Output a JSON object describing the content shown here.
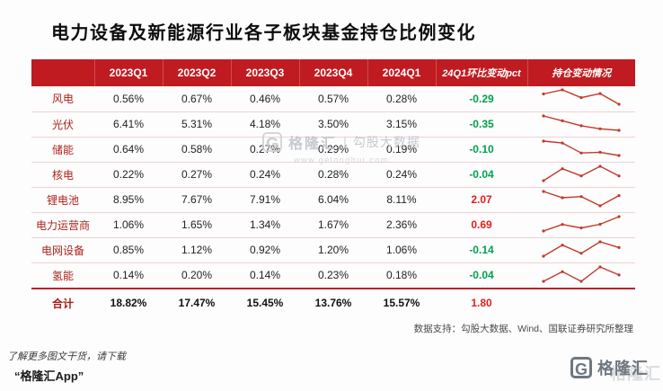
{
  "title": "电力设备及新能源行业各子板块基金持仓比例变化",
  "colors": {
    "header_bg": "#c01b21",
    "row_label": "#ab241c",
    "negative": "#00a04f",
    "positive": "#e51d1d",
    "sparkline": "#c0392b"
  },
  "table": {
    "quarter_headers": [
      "2023Q1",
      "2023Q2",
      "2023Q3",
      "2023Q4",
      "2024Q1"
    ],
    "change_header": "24Q1环比变动pct",
    "trend_header": "持仓变动情况",
    "rows": [
      {
        "label": "风电",
        "values": [
          "0.56%",
          "0.67%",
          "0.46%",
          "0.57%",
          "0.28%"
        ],
        "change": "-0.29",
        "change_sign": "negative",
        "trend": [
          0.56,
          0.67,
          0.46,
          0.57,
          0.28
        ]
      },
      {
        "label": "光伏",
        "values": [
          "6.41%",
          "5.31%",
          "4.18%",
          "3.50%",
          "3.15%"
        ],
        "change": "-0.35",
        "change_sign": "negative",
        "trend": [
          6.41,
          5.31,
          4.18,
          3.5,
          3.15
        ]
      },
      {
        "label": "储能",
        "values": [
          "0.64%",
          "0.58%",
          "0.27%",
          "0.29%",
          "0.19%"
        ],
        "change": "-0.10",
        "change_sign": "negative",
        "trend": [
          0.64,
          0.58,
          0.27,
          0.29,
          0.19
        ]
      },
      {
        "label": "核电",
        "values": [
          "0.22%",
          "0.27%",
          "0.24%",
          "0.28%",
          "0.24%"
        ],
        "change": "-0.04",
        "change_sign": "negative",
        "trend": [
          0.22,
          0.27,
          0.24,
          0.28,
          0.24
        ]
      },
      {
        "label": "锂电池",
        "values": [
          "8.95%",
          "7.67%",
          "7.91%",
          "6.04%",
          "8.11%"
        ],
        "change": "2.07",
        "change_sign": "positive",
        "trend": [
          8.95,
          7.67,
          7.91,
          6.04,
          8.11
        ]
      },
      {
        "label": "电力运营商",
        "values": [
          "1.06%",
          "1.65%",
          "1.34%",
          "1.67%",
          "2.36%"
        ],
        "change": "0.69",
        "change_sign": "positive",
        "trend": [
          1.06,
          1.65,
          1.34,
          1.67,
          2.36
        ]
      },
      {
        "label": "电网设备",
        "values": [
          "0.85%",
          "1.12%",
          "0.92%",
          "1.20%",
          "1.06%"
        ],
        "change": "-0.14",
        "change_sign": "negative",
        "trend": [
          0.85,
          1.12,
          0.92,
          1.2,
          1.06
        ]
      },
      {
        "label": "氢能",
        "values": [
          "0.14%",
          "0.20%",
          "0.14%",
          "0.23%",
          "0.18%"
        ],
        "change": "-0.04",
        "change_sign": "negative",
        "trend": [
          0.14,
          0.2,
          0.14,
          0.23,
          0.18
        ]
      }
    ],
    "total_row": {
      "label": "合计",
      "values": [
        "18.82%",
        "17.47%",
        "15.45%",
        "13.76%",
        "15.57%"
      ],
      "change": "1.80",
      "change_sign": "positive"
    }
  },
  "source_note": "数据支持：勾股大数据、Wind、国联证券研究所整理",
  "watermark": {
    "logo_letter": "G",
    "brand": "格隆汇",
    "divider": "|",
    "product": "勾股大数据",
    "url": "www.gelonghui.com"
  },
  "footer": {
    "promo_line1": "了解更多图文干货，请下载",
    "promo_line2": "“格隆汇App”",
    "logo_letter": "G",
    "logo_text": "格隆汇"
  },
  "chart_data": {
    "type": "table",
    "title": "电力设备及新能源行业各子板块基金持仓比例变化",
    "unit": "%",
    "columns": [
      "2023Q1",
      "2023Q2",
      "2023Q3",
      "2023Q4",
      "2024Q1",
      "24Q1环比变动pct",
      "持仓变动情况"
    ],
    "rows": [
      {
        "name": "风电",
        "values": [
          0.56,
          0.67,
          0.46,
          0.57,
          0.28
        ],
        "qoq_change_pct": -0.29
      },
      {
        "name": "光伏",
        "values": [
          6.41,
          5.31,
          4.18,
          3.5,
          3.15
        ],
        "qoq_change_pct": -0.35
      },
      {
        "name": "储能",
        "values": [
          0.64,
          0.58,
          0.27,
          0.29,
          0.19
        ],
        "qoq_change_pct": -0.1
      },
      {
        "name": "核电",
        "values": [
          0.22,
          0.27,
          0.24,
          0.28,
          0.24
        ],
        "qoq_change_pct": -0.04
      },
      {
        "name": "锂电池",
        "values": [
          8.95,
          7.67,
          7.91,
          6.04,
          8.11
        ],
        "qoq_change_pct": 2.07
      },
      {
        "name": "电力运营商",
        "values": [
          1.06,
          1.65,
          1.34,
          1.67,
          2.36
        ],
        "qoq_change_pct": 0.69
      },
      {
        "name": "电网设备",
        "values": [
          0.85,
          1.12,
          0.92,
          1.2,
          1.06
        ],
        "qoq_change_pct": -0.14
      },
      {
        "name": "氢能",
        "values": [
          0.14,
          0.2,
          0.14,
          0.23,
          0.18
        ],
        "qoq_change_pct": -0.04
      },
      {
        "name": "合计",
        "values": [
          18.82,
          17.47,
          15.45,
          13.76,
          15.57
        ],
        "qoq_change_pct": 1.8
      }
    ],
    "sparkline_column": "持仓变动情况",
    "source": "数据支持：勾股大数据、Wind、国联证券研究所整理"
  }
}
